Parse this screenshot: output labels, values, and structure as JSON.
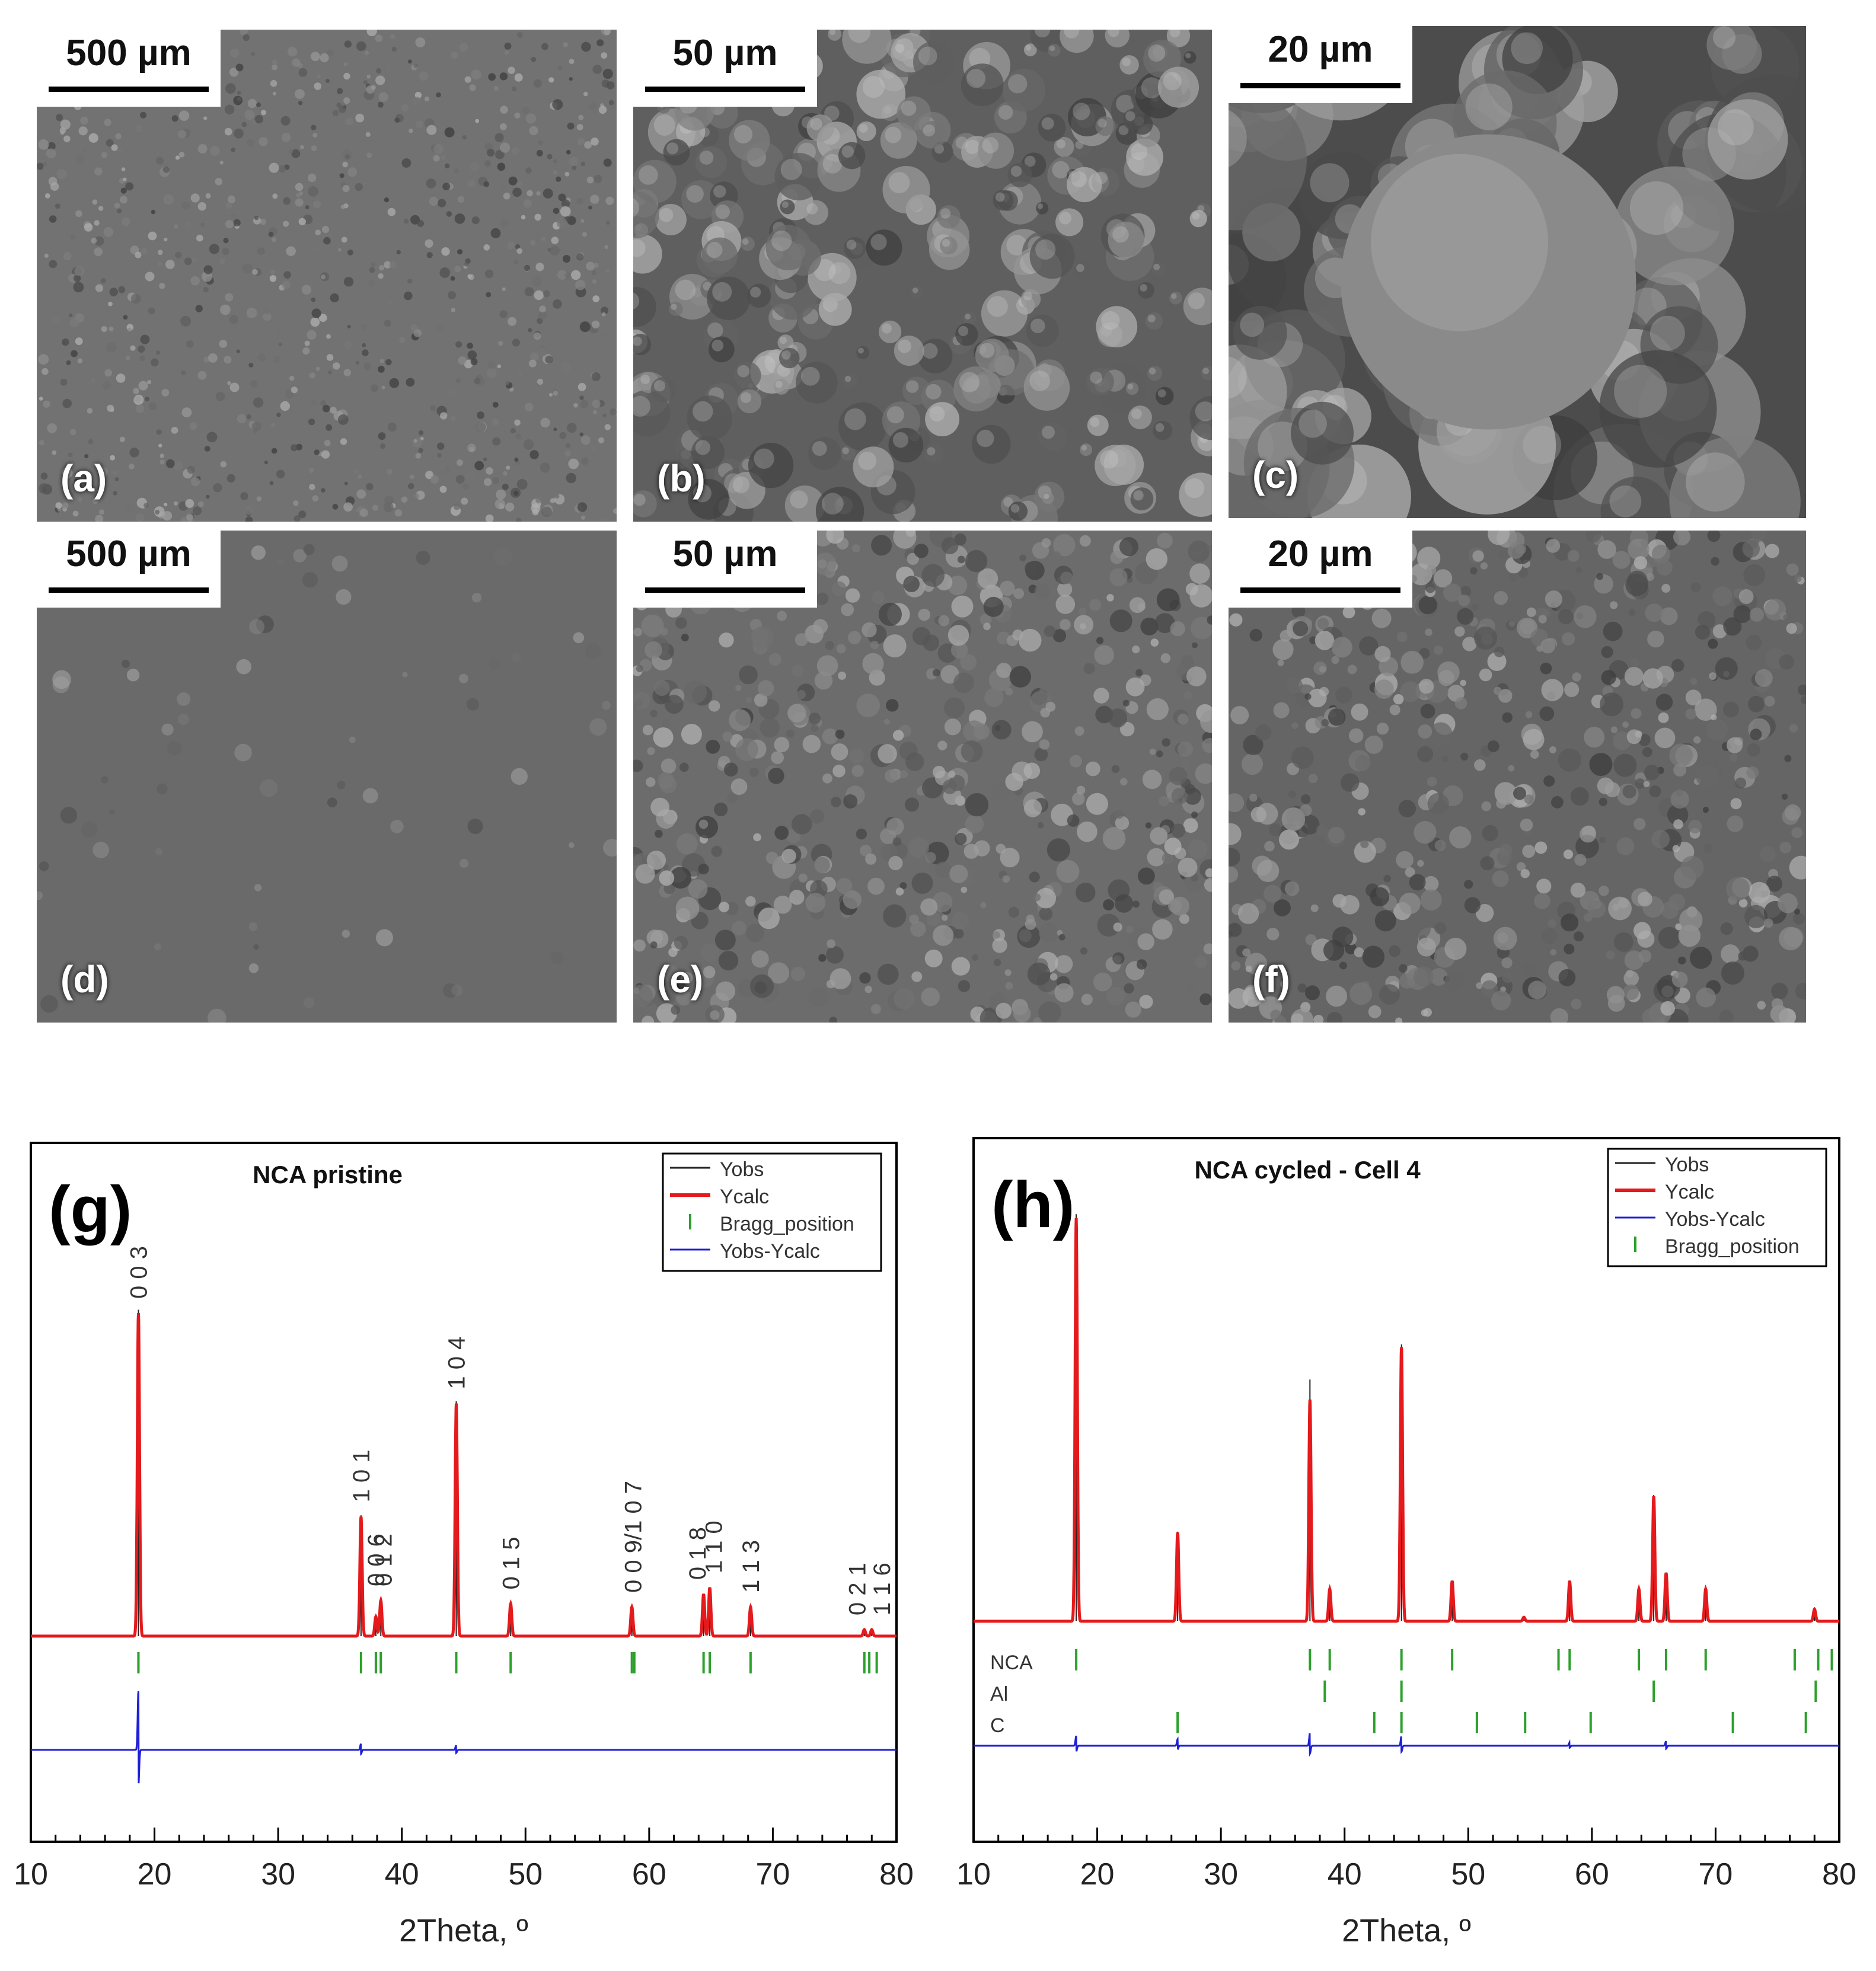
{
  "sem_panels": [
    {
      "id": "a",
      "label": "(a)",
      "scale": "500 µm",
      "tone": "#727272",
      "grain": "fine"
    },
    {
      "id": "b",
      "label": "(b)",
      "scale": "50 µm",
      "tone": "#5f5f5f",
      "grain": "spheres"
    },
    {
      "id": "c",
      "label": "(c)",
      "scale": "20 µm",
      "tone": "#4c4c4c",
      "grain": "big"
    },
    {
      "id": "d",
      "label": "(d)",
      "scale": "500 µm",
      "tone": "#6a6a6a",
      "grain": "smooth"
    },
    {
      "id": "e",
      "label": "(e)",
      "scale": "50 µm",
      "tone": "#6c6c6c",
      "grain": "rough"
    },
    {
      "id": "f",
      "label": "(f)",
      "scale": "20 µm",
      "tone": "#656565",
      "grain": "rough"
    }
  ],
  "colors": {
    "yobs": "#222222",
    "ycalc": "#e41a1c",
    "diff": "#1f1fd8",
    "bragg": "#2ca02c"
  },
  "chart_data": [
    {
      "type": "line",
      "panel_label": "(g)",
      "title": "NCA pristine",
      "xlabel": "2Theta, º",
      "xlim": [
        10,
        80
      ],
      "xticks": [
        10,
        20,
        30,
        40,
        50,
        60,
        70,
        80
      ],
      "legend": [
        "Yobs",
        "Ycalc",
        "Bragg_position",
        "Yobs-Ycalc"
      ],
      "legend_position": "top-right",
      "series": [
        {
          "name": "Ycalc",
          "peaks": [
            {
              "x": 18.7,
              "h": 1.0
            },
            {
              "x": 36.7,
              "h": 0.37
            },
            {
              "x": 37.9,
              "h": 0.06
            },
            {
              "x": 38.3,
              "h": 0.11
            },
            {
              "x": 44.4,
              "h": 0.72
            },
            {
              "x": 48.8,
              "h": 0.1
            },
            {
              "x": 58.6,
              "h": 0.09
            },
            {
              "x": 64.4,
              "h": 0.13
            },
            {
              "x": 64.9,
              "h": 0.15
            },
            {
              "x": 68.2,
              "h": 0.09
            },
            {
              "x": 77.4,
              "h": 0.02
            },
            {
              "x": 78.0,
              "h": 0.02
            }
          ]
        }
      ],
      "bragg_rows": [
        {
          "name": "",
          "x": [
            18.7,
            36.7,
            37.9,
            38.3,
            44.4,
            48.8,
            58.6,
            58.8,
            64.4,
            64.9,
            68.2,
            77.4,
            77.8,
            78.4
          ]
        }
      ],
      "diff_spikes": [
        {
          "x": 18.7,
          "a": 0.18
        },
        {
          "x": 36.7,
          "a": 0.02
        },
        {
          "x": 44.4,
          "a": 0.015
        }
      ],
      "annotations": [
        {
          "x": 18.7,
          "text": "0 0 3"
        },
        {
          "x": 36.7,
          "text": "1 0 1"
        },
        {
          "x": 37.9,
          "text": "0 0 6"
        },
        {
          "x": 38.5,
          "text": "0 1 2"
        },
        {
          "x": 44.4,
          "text": "1 0 4"
        },
        {
          "x": 48.8,
          "text": "0 1 5"
        },
        {
          "x": 58.7,
          "text": "0 0 9/1 0 7"
        },
        {
          "x": 63.9,
          "text": "0 1 8"
        },
        {
          "x": 65.2,
          "text": "1 1 0"
        },
        {
          "x": 68.2,
          "text": "1 1 3"
        },
        {
          "x": 76.8,
          "text": "0 2 1"
        },
        {
          "x": 78.8,
          "text": "1 1 6"
        }
      ]
    },
    {
      "type": "line",
      "panel_label": "(h)",
      "title": "NCA cycled - Cell 4",
      "xlabel": "2Theta, º",
      "xlim": [
        10,
        80
      ],
      "xticks": [
        10,
        20,
        30,
        40,
        50,
        60,
        70,
        80
      ],
      "legend": [
        "Yobs",
        "Ycalc",
        "Yobs-Ycalc",
        "Bragg_position"
      ],
      "legend_position": "top-right",
      "series": [
        {
          "name": "Ycalc",
          "peaks": [
            {
              "x": 18.3,
              "h": 1.0
            },
            {
              "x": 26.5,
              "h": 0.22
            },
            {
              "x": 37.2,
              "h": 0.55
            },
            {
              "x": 38.8,
              "h": 0.08
            },
            {
              "x": 44.6,
              "h": 0.68
            },
            {
              "x": 48.7,
              "h": 0.1
            },
            {
              "x": 54.5,
              "h": 0.01
            },
            {
              "x": 58.2,
              "h": 0.1
            },
            {
              "x": 63.8,
              "h": 0.08
            },
            {
              "x": 65.0,
              "h": 0.31
            },
            {
              "x": 66.0,
              "h": 0.12
            },
            {
              "x": 69.2,
              "h": 0.08
            },
            {
              "x": 78.0,
              "h": 0.03
            }
          ]
        }
      ],
      "bragg_rows": [
        {
          "name": "NCA",
          "x": [
            18.3,
            37.2,
            38.8,
            44.6,
            48.7,
            57.3,
            58.2,
            63.8,
            66.0,
            69.2,
            76.4,
            78.3,
            79.4
          ]
        },
        {
          "name": "Al",
          "x": [
            38.4,
            44.6,
            65.0,
            78.1
          ]
        },
        {
          "name": "C",
          "x": [
            26.5,
            42.4,
            44.6,
            50.7,
            54.6,
            59.9,
            71.4,
            77.3
          ]
        }
      ],
      "diff_spikes": [
        {
          "x": 18.3,
          "a": 0.03
        },
        {
          "x": 26.5,
          "a": 0.02
        },
        {
          "x": 37.2,
          "a": 0.04
        },
        {
          "x": 44.6,
          "a": 0.03
        },
        {
          "x": 58.2,
          "a": 0.01
        },
        {
          "x": 66.0,
          "a": 0.015
        }
      ]
    }
  ]
}
